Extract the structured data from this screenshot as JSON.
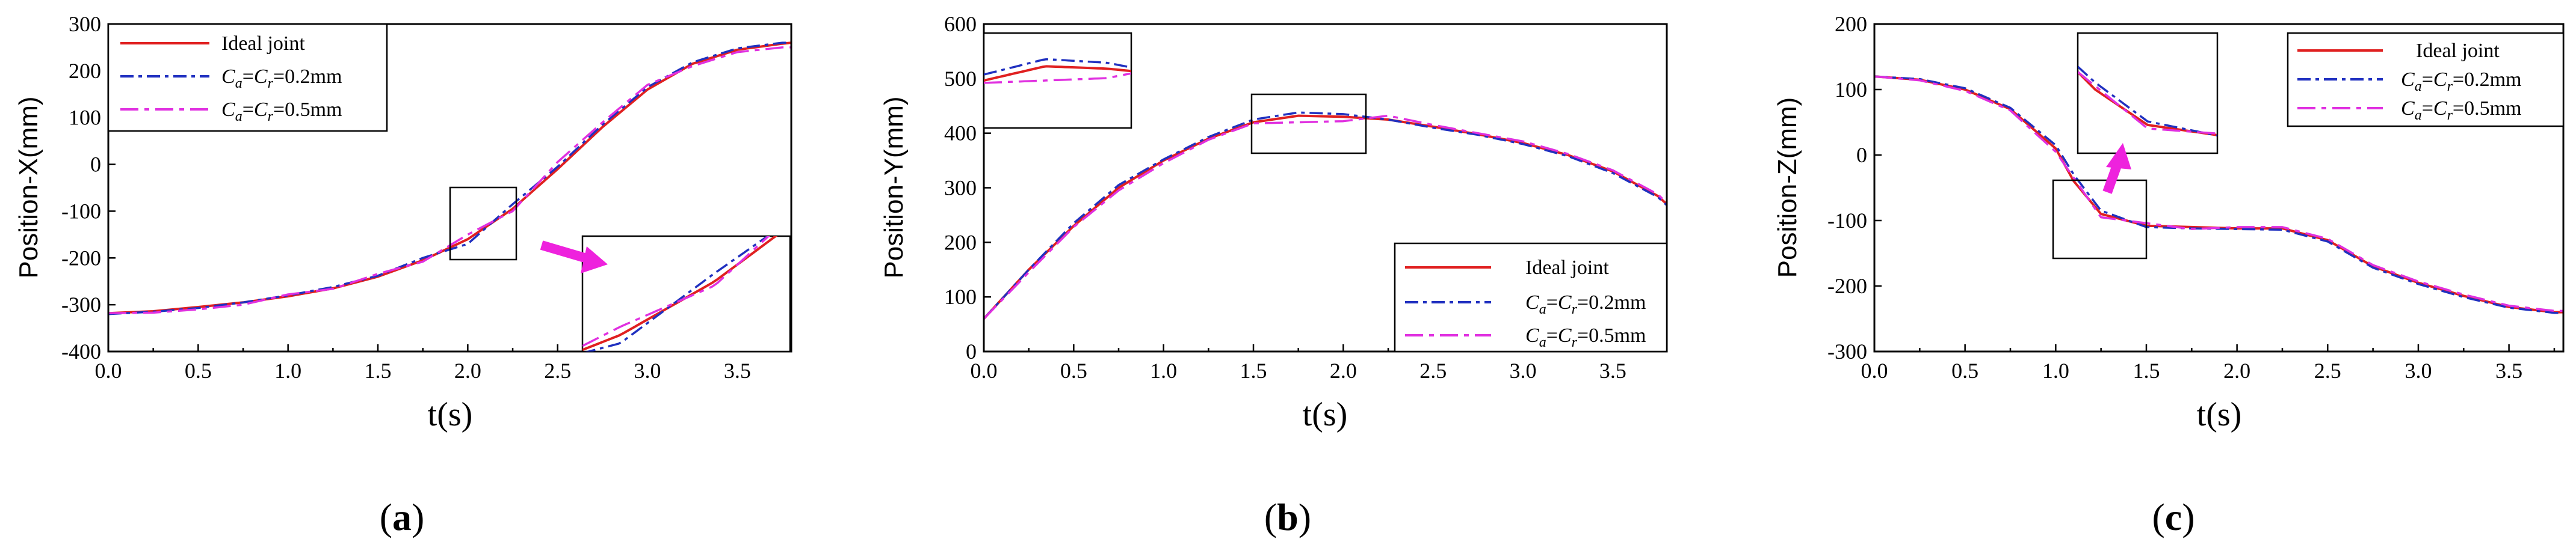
{
  "panels_labels": [
    "a",
    "b",
    "c"
  ],
  "colors": {
    "ideal": "#e02020",
    "c02": "#2030c0",
    "c05": "#e030e0",
    "arrow": "#ee22dd"
  },
  "legend": {
    "ideal": "Ideal joint",
    "c02_prefix": "C",
    "c02_sub_a": "a",
    "c02_eq": "=C",
    "c02_sub_r": "r",
    "c02_val": "=0.2mm",
    "c05_val": "=0.5mm"
  },
  "chart_data": [
    {
      "type": "line",
      "panel": "a",
      "ylabel": "Position-X(mm)",
      "xlabel": "t(s)",
      "xlim": [
        0.0,
        3.8
      ],
      "ylim": [
        -400,
        300
      ],
      "xticks": [
        "0.0",
        "0.5",
        "1.0",
        "1.5",
        "2.0",
        "2.5",
        "3.0",
        "3.5"
      ],
      "yticks": [
        "-400",
        "-300",
        "-200",
        "-100",
        "0",
        "100",
        "200",
        "300"
      ],
      "legend_position": "top-left",
      "x": [
        0.0,
        0.25,
        0.5,
        0.75,
        1.0,
        1.25,
        1.5,
        1.75,
        2.0,
        2.25,
        2.5,
        2.75,
        3.0,
        3.25,
        3.5,
        3.75,
        3.8
      ],
      "series": [
        {
          "name": "Ideal joint",
          "values": [
            -318,
            -314,
            -305,
            -295,
            -282,
            -265,
            -240,
            -205,
            -160,
            -95,
            -10,
            80,
            160,
            215,
            245,
            258,
            260
          ]
        },
        {
          "name": "Ca=Cr=0.2mm",
          "values": [
            -320,
            -315,
            -307,
            -295,
            -280,
            -262,
            -238,
            -200,
            -170,
            -85,
            -5,
            85,
            165,
            218,
            248,
            260,
            260
          ]
        },
        {
          "name": "Ca=Cr=0.5mm",
          "values": [
            -318,
            -317,
            -310,
            -300,
            -278,
            -266,
            -234,
            -208,
            -150,
            -100,
            5,
            90,
            170,
            210,
            240,
            250,
            250
          ]
        }
      ]
    },
    {
      "type": "line",
      "panel": "b",
      "ylabel": "Position-Y(mm)",
      "xlabel": "t(s)",
      "xlim": [
        0.0,
        3.8
      ],
      "ylim": [
        0,
        600
      ],
      "xticks": [
        "0.0",
        "0.5",
        "1.0",
        "1.5",
        "2.0",
        "2.5",
        "3.0",
        "3.5"
      ],
      "yticks": [
        "0",
        "100",
        "200",
        "300",
        "400",
        "500",
        "600"
      ],
      "legend_position": "bottom-right",
      "x": [
        0.0,
        0.25,
        0.5,
        0.75,
        1.0,
        1.25,
        1.5,
        1.75,
        2.0,
        2.25,
        2.5,
        2.75,
        3.0,
        3.25,
        3.5,
        3.75,
        3.8
      ],
      "series": [
        {
          "name": "Ideal joint",
          "values": [
            60,
            150,
            230,
            300,
            350,
            390,
            420,
            432,
            430,
            425,
            412,
            398,
            382,
            360,
            330,
            285,
            270
          ]
        },
        {
          "name": "Ca=Cr=0.2mm",
          "values": [
            60,
            150,
            235,
            305,
            352,
            393,
            425,
            438,
            435,
            425,
            410,
            397,
            380,
            358,
            327,
            283,
            268
          ]
        },
        {
          "name": "Ca=Cr=0.5mm",
          "values": [
            60,
            145,
            228,
            295,
            345,
            388,
            418,
            420,
            422,
            432,
            415,
            400,
            385,
            362,
            332,
            288,
            272
          ]
        }
      ]
    },
    {
      "type": "line",
      "panel": "c",
      "ylabel": "Position-Z(mm)",
      "xlabel": "t(s)",
      "xlim": [
        0.0,
        3.8
      ],
      "ylim": [
        -300,
        200
      ],
      "xticks": [
        "0.0",
        "0.5",
        "1.0",
        "1.5",
        "2.0",
        "2.5",
        "3.0",
        "3.5"
      ],
      "yticks": [
        "-300",
        "-200",
        "-100",
        "0",
        "100",
        "200"
      ],
      "legend_position": "top-right",
      "x": [
        0.0,
        0.25,
        0.5,
        0.75,
        1.0,
        1.1,
        1.25,
        1.5,
        1.75,
        2.0,
        2.25,
        2.5,
        2.75,
        3.0,
        3.25,
        3.5,
        3.75,
        3.8
      ],
      "series": [
        {
          "name": "Ideal joint",
          "values": [
            120,
            115,
            100,
            70,
            10,
            -40,
            -90,
            -108,
            -110,
            -112,
            -112,
            -130,
            -170,
            -195,
            -215,
            -232,
            -240,
            -240
          ]
        },
        {
          "name": "Ca=Cr=0.2mm",
          "values": [
            120,
            116,
            102,
            72,
            15,
            -30,
            -85,
            -110,
            -112,
            -113,
            -114,
            -132,
            -172,
            -197,
            -217,
            -233,
            -241,
            -241
          ]
        },
        {
          "name": "Ca=Cr=0.5mm",
          "values": [
            120,
            114,
            98,
            68,
            5,
            -35,
            -95,
            -104,
            -113,
            -110,
            -110,
            -128,
            -168,
            -193,
            -213,
            -230,
            -238,
            -238
          ]
        }
      ]
    }
  ]
}
